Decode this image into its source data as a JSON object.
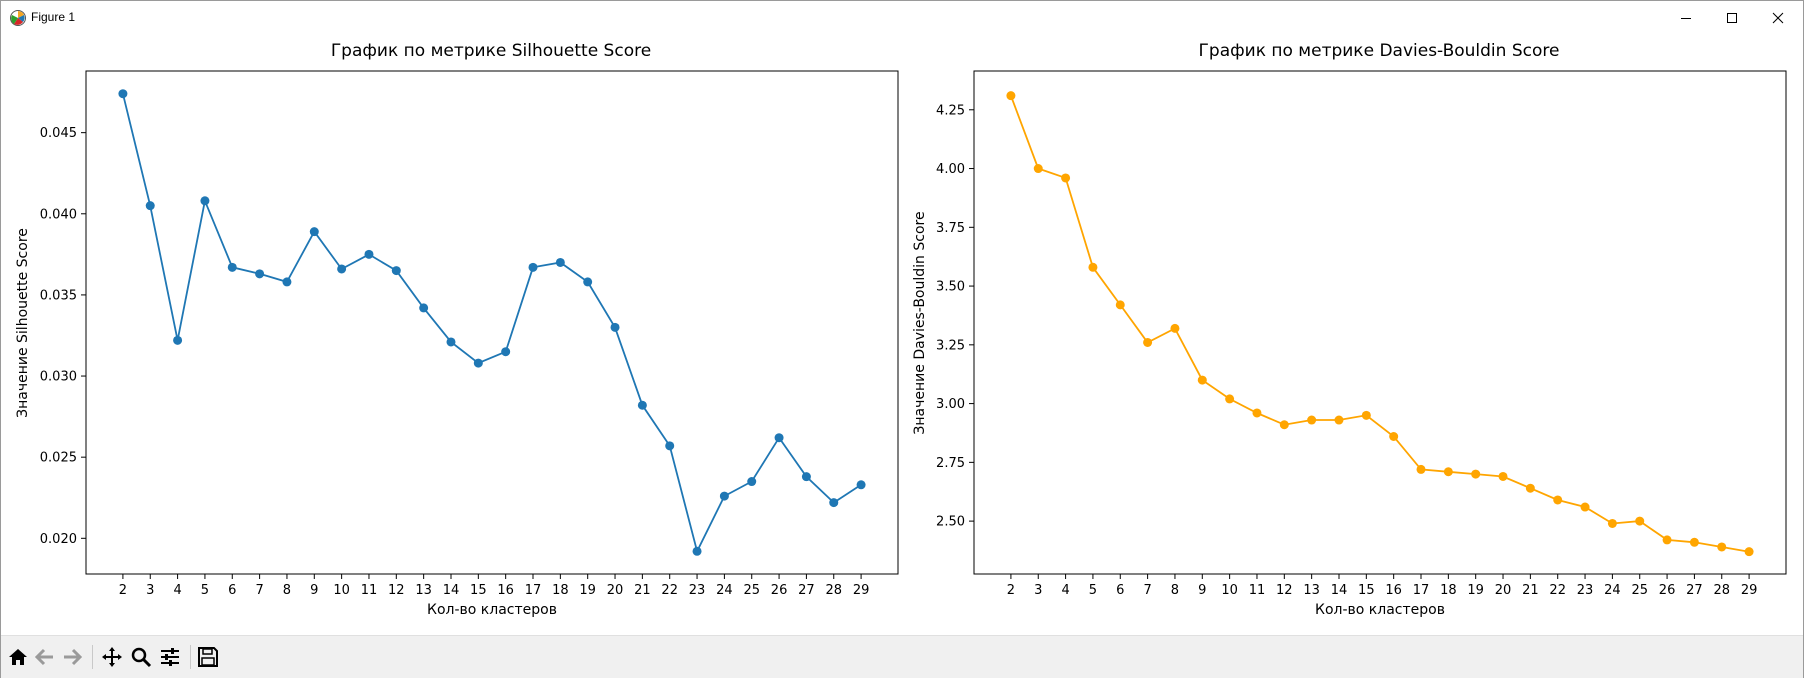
{
  "window": {
    "title": "Figure 1",
    "icons": [
      "matplotlib-icon",
      "minimize-icon",
      "maximize-icon",
      "close-icon"
    ]
  },
  "toolbar": {
    "buttons": [
      "home-icon",
      "back-arrow-icon",
      "forward-arrow-icon",
      "pan-icon",
      "zoom-icon",
      "configure-subplots-icon",
      "save-icon"
    ]
  },
  "chart_data": [
    {
      "type": "line",
      "title": "График по метрике Silhouette Score",
      "xlabel": "Кол-во кластеров",
      "ylabel": "Значение Silhouette Score",
      "x": [
        2,
        3,
        4,
        5,
        6,
        7,
        8,
        9,
        10,
        11,
        12,
        13,
        14,
        15,
        16,
        17,
        18,
        19,
        20,
        21,
        22,
        23,
        24,
        25,
        26,
        27,
        28,
        29
      ],
      "series": [
        {
          "values": [
            0.0474,
            0.0405,
            0.0322,
            0.0408,
            0.0367,
            0.0363,
            0.0358,
            0.0389,
            0.0366,
            0.0375,
            0.0365,
            0.0342,
            0.0321,
            0.0308,
            0.0315,
            0.0367,
            0.037,
            0.0358,
            0.033,
            0.0282,
            0.0257,
            0.0192,
            0.0226,
            0.0235,
            0.0262,
            0.0238,
            0.0222,
            0.0233
          ],
          "color": "#1f77b4",
          "marker": "circle"
        }
      ],
      "yticks": [
        "0.020",
        "0.025",
        "0.030",
        "0.035",
        "0.040",
        "0.045"
      ],
      "ytick_values": [
        0.02,
        0.025,
        0.03,
        0.035,
        0.04,
        0.045
      ],
      "ylim": [
        0.0178,
        0.0488
      ],
      "xlim": [
        0.65,
        30.35
      ],
      "grid": false
    },
    {
      "type": "line",
      "title": "График по метрике Davies-Bouldin Score",
      "xlabel": "Кол-во кластеров",
      "ylabel": "Значение Davies-Bouldin Score",
      "x": [
        2,
        3,
        4,
        5,
        6,
        7,
        8,
        9,
        10,
        11,
        12,
        13,
        14,
        15,
        16,
        17,
        18,
        19,
        20,
        21,
        22,
        23,
        24,
        25,
        26,
        27,
        28,
        29
      ],
      "series": [
        {
          "values": [
            4.31,
            4.0,
            3.96,
            3.58,
            3.42,
            3.26,
            3.32,
            3.1,
            3.02,
            2.96,
            2.91,
            2.93,
            2.93,
            2.95,
            2.86,
            2.72,
            2.71,
            2.7,
            2.69,
            2.64,
            2.59,
            2.56,
            2.49,
            2.5,
            2.42,
            2.41,
            2.39,
            2.37
          ],
          "color": "#ffa500",
          "marker": "circle"
        }
      ],
      "yticks": [
        "2.50",
        "2.75",
        "3.00",
        "3.25",
        "3.50",
        "3.75",
        "4.00",
        "4.25"
      ],
      "ytick_values": [
        2.5,
        2.75,
        3.0,
        3.25,
        3.5,
        3.75,
        4.0,
        4.25
      ],
      "ylim": [
        2.275,
        4.415
      ],
      "xlim": [
        0.65,
        30.35
      ],
      "grid": false
    }
  ]
}
